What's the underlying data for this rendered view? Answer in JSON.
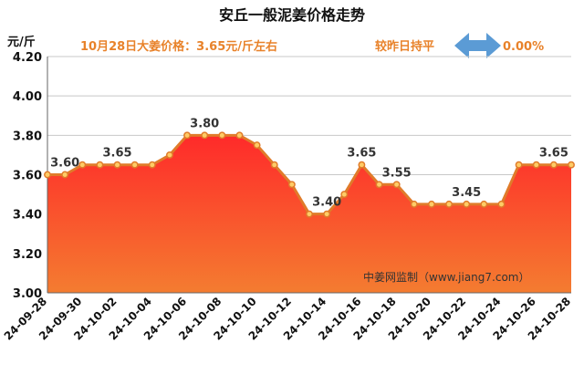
{
  "chart_data": {
    "type": "area",
    "title": "安丘一般泥姜价格走势",
    "unit": "元/斤",
    "info_price": "10月28日大姜价格：3.65元/斤左右",
    "info_change_label": "较昨日持平",
    "info_change_value": "0.00%",
    "watermark": "中姜网监制（www.jiang7.com）",
    "ylim": [
      3.0,
      4.2
    ],
    "yticks": [
      "3.00",
      "3.20",
      "3.40",
      "3.60",
      "3.80",
      "4.00",
      "4.20"
    ],
    "x": [
      "24-09-28",
      "24-09-29",
      "24-09-30",
      "24-10-01",
      "24-10-02",
      "24-10-03",
      "24-10-04",
      "24-10-05",
      "24-10-06",
      "24-10-07",
      "24-10-08",
      "24-10-09",
      "24-10-10",
      "24-10-11",
      "24-10-12",
      "24-10-13",
      "24-10-14",
      "24-10-15",
      "24-10-16",
      "24-10-17",
      "24-10-18",
      "24-10-19",
      "24-10-20",
      "24-10-21",
      "24-10-22",
      "24-10-23",
      "24-10-24",
      "24-10-25",
      "24-10-26",
      "24-10-27",
      "24-10-28"
    ],
    "xtick_labels": [
      "24-09-28",
      "24-09-30",
      "24-10-02",
      "24-10-04",
      "24-10-06",
      "24-10-08",
      "24-10-10",
      "24-10-12",
      "24-10-14",
      "24-10-16",
      "24-10-18",
      "24-10-20",
      "24-10-22",
      "24-10-24",
      "24-10-26",
      "24-10-28"
    ],
    "values": [
      3.6,
      3.6,
      3.65,
      3.65,
      3.65,
      3.65,
      3.65,
      3.7,
      3.8,
      3.8,
      3.8,
      3.8,
      3.75,
      3.65,
      3.55,
      3.4,
      3.4,
      3.5,
      3.65,
      3.55,
      3.55,
      3.45,
      3.45,
      3.45,
      3.45,
      3.45,
      3.45,
      3.65,
      3.65,
      3.65,
      3.65
    ],
    "data_labels": [
      {
        "index": 1,
        "text": "3.60"
      },
      {
        "index": 4,
        "text": "3.65"
      },
      {
        "index": 9,
        "text": "3.80"
      },
      {
        "index": 16,
        "text": "3.40"
      },
      {
        "index": 18,
        "text": "3.65"
      },
      {
        "index": 20,
        "text": "3.55"
      },
      {
        "index": 24,
        "text": "3.45"
      },
      {
        "index": 29,
        "text": "3.65"
      }
    ],
    "colors": {
      "line": "#e07b2a",
      "fill_top": "#ff2a2a",
      "fill_bottom": "#f47c30",
      "marker_fill": "#ffcc66",
      "arrow": "#5b9bd5",
      "info_text": "#e8822a",
      "grid": "#c8c8c8"
    }
  }
}
